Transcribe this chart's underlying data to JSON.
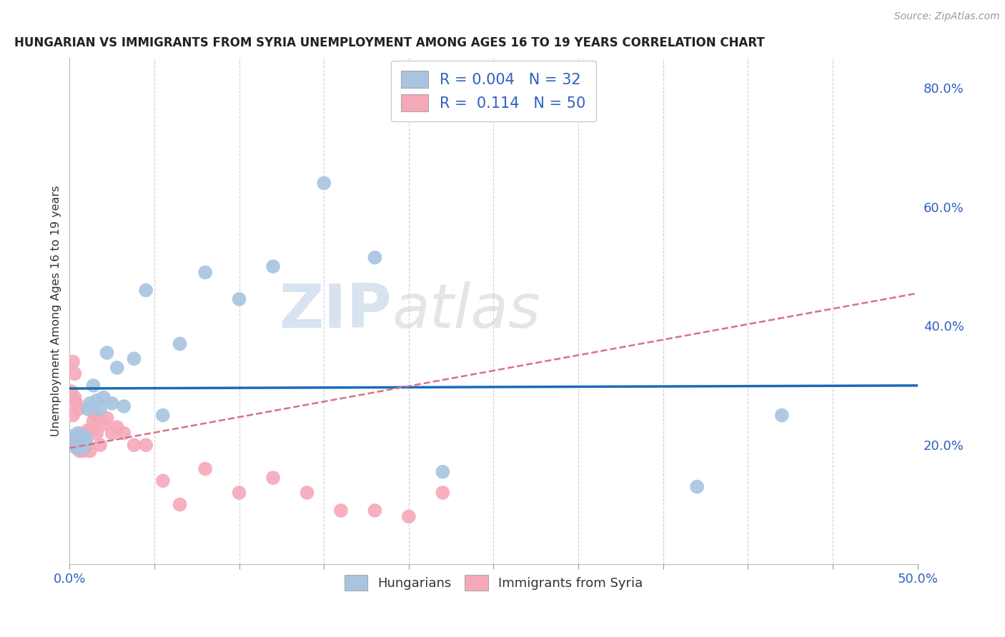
{
  "title": "HUNGARIAN VS IMMIGRANTS FROM SYRIA UNEMPLOYMENT AMONG AGES 16 TO 19 YEARS CORRELATION CHART",
  "source": "Source: ZipAtlas.com",
  "ylabel": "Unemployment Among Ages 16 to 19 years",
  "xlim": [
    0.0,
    0.5
  ],
  "ylim": [
    0.0,
    0.85
  ],
  "xticks": [
    0.0,
    0.05,
    0.1,
    0.15,
    0.2,
    0.25,
    0.3,
    0.35,
    0.4,
    0.45,
    0.5
  ],
  "hungarian_R": 0.004,
  "hungarian_N": 32,
  "syria_R": 0.114,
  "syria_N": 50,
  "hungarian_color": "#a8c4e0",
  "syria_color": "#f5a8b8",
  "hungarian_trend_color": "#1a6bb5",
  "syria_trend_color": "#d87090",
  "watermark": "ZIPatlas",
  "watermark_blue": "#c8d8ec",
  "watermark_gray": "#b0c0d0",
  "legend_blue": "#3060c0",
  "legend_black": "#333333",
  "background_color": "#ffffff",
  "grid_color": "#cccccc",
  "hungarian_x": [
    0.001,
    0.002,
    0.003,
    0.004,
    0.005,
    0.006,
    0.007,
    0.008,
    0.009,
    0.01,
    0.011,
    0.012,
    0.014,
    0.016,
    0.018,
    0.02,
    0.022,
    0.025,
    0.028,
    0.032,
    0.038,
    0.045,
    0.055,
    0.065,
    0.08,
    0.1,
    0.12,
    0.15,
    0.18,
    0.22,
    0.37,
    0.42
  ],
  "hungarian_y": [
    0.215,
    0.2,
    0.21,
    0.195,
    0.22,
    0.205,
    0.195,
    0.215,
    0.2,
    0.21,
    0.26,
    0.27,
    0.3,
    0.275,
    0.26,
    0.28,
    0.355,
    0.27,
    0.33,
    0.265,
    0.345,
    0.46,
    0.25,
    0.37,
    0.49,
    0.445,
    0.5,
    0.64,
    0.515,
    0.155,
    0.13,
    0.25
  ],
  "syria_x": [
    0.001,
    0.001,
    0.002,
    0.002,
    0.003,
    0.003,
    0.003,
    0.004,
    0.004,
    0.004,
    0.005,
    0.005,
    0.005,
    0.006,
    0.006,
    0.006,
    0.007,
    0.007,
    0.007,
    0.008,
    0.008,
    0.008,
    0.009,
    0.009,
    0.01,
    0.01,
    0.011,
    0.012,
    0.013,
    0.014,
    0.015,
    0.016,
    0.018,
    0.02,
    0.022,
    0.025,
    0.028,
    0.032,
    0.038,
    0.045,
    0.055,
    0.065,
    0.08,
    0.1,
    0.12,
    0.14,
    0.16,
    0.18,
    0.2,
    0.22
  ],
  "syria_y": [
    0.2,
    0.29,
    0.25,
    0.34,
    0.21,
    0.28,
    0.32,
    0.2,
    0.27,
    0.21,
    0.195,
    0.26,
    0.2,
    0.19,
    0.215,
    0.195,
    0.215,
    0.195,
    0.205,
    0.195,
    0.22,
    0.19,
    0.215,
    0.195,
    0.2,
    0.215,
    0.225,
    0.19,
    0.225,
    0.24,
    0.25,
    0.22,
    0.2,
    0.235,
    0.245,
    0.22,
    0.23,
    0.22,
    0.2,
    0.2,
    0.14,
    0.1,
    0.16,
    0.12,
    0.145,
    0.12,
    0.09,
    0.09,
    0.08,
    0.12
  ],
  "hun_trend_x": [
    0.0,
    0.5
  ],
  "hun_trend_y": [
    0.295,
    0.3
  ],
  "syr_trend_x": [
    0.0,
    0.5
  ],
  "syr_trend_y": [
    0.195,
    0.455
  ]
}
